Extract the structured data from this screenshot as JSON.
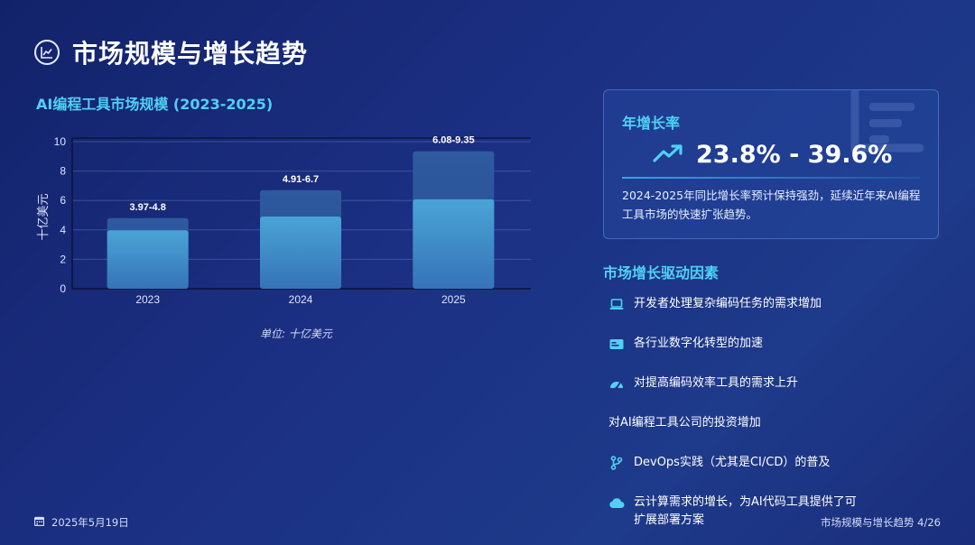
{
  "page": {
    "title": "市场规模与增长趋势",
    "footer_date": "2025年5月19日",
    "footer_page": "市场规模与增长趋势 4/26"
  },
  "colors": {
    "accent": "#4fd1f5",
    "bar_fill": "#3d8fc4",
    "range_fill": "#2f5fa4",
    "background": "#1b2f82"
  },
  "icons": {
    "header": "line-chart-icon",
    "trend": "trending-up-icon",
    "watermark": "list-chart-icon",
    "calendar": "calendar-icon"
  },
  "chart_data": {
    "type": "bar",
    "title": "AI编程工具市场规模 (2023-2025)",
    "xlabel": "",
    "ylabel": "十亿美元",
    "unit_note": "单位: 十亿美元",
    "categories": [
      "2023",
      "2024",
      "2025"
    ],
    "series": [
      {
        "name": "",
        "values": [
          3.97,
          4.91,
          6.08
        ]
      },
      {
        "name": "",
        "values": [
          4.8,
          6.7,
          9.35
        ]
      }
    ],
    "range_labels": [
      "3.97-4.8",
      "4.91-6.7",
      "6.08-9.35"
    ],
    "ylim": [
      0,
      10
    ],
    "yticks": [
      0,
      2,
      4,
      6,
      8,
      10
    ],
    "grid": true
  },
  "growth_card": {
    "label": "年增长率",
    "value": "23.8% - 39.6%",
    "description": "2024-2025年同比增长率预计保持强劲，延续近年来AI编程工具市场的快速扩张趋势。"
  },
  "drivers": {
    "title": "市场增长驱动因素",
    "items": [
      {
        "icon": "laptop-icon",
        "text": "开发者处理复杂编码任务的需求增加"
      },
      {
        "icon": "screen-icon",
        "text": "各行业数字化转型的加速"
      },
      {
        "icon": "gauge-icon",
        "text": "对提高编码效率工具的需求上升"
      },
      {
        "icon": "",
        "text": "对AI编程工具公司的投资增加"
      },
      {
        "icon": "branch-icon",
        "text": "DevOps实践（尤其是CI/CD）的普及"
      },
      {
        "icon": "cloud-icon",
        "text": "云计算需求的增长，为AI代码工具提供了可扩展部署方案"
      }
    ]
  }
}
